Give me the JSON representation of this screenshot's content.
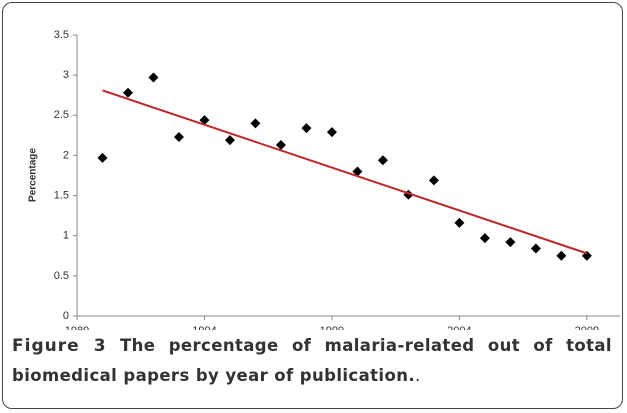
{
  "chart_data": {
    "type": "scatter",
    "y_label": "Percentage",
    "x": [
      1990,
      1991,
      1992,
      1993,
      1994,
      1995,
      1996,
      1997,
      1998,
      1999,
      2000,
      2001,
      2002,
      2003,
      2004,
      2005,
      2006,
      2007,
      2008,
      2009
    ],
    "values": [
      1.97,
      2.78,
      2.97,
      2.23,
      2.44,
      2.19,
      2.4,
      2.13,
      2.34,
      2.29,
      1.8,
      1.94,
      1.51,
      1.69,
      1.16,
      0.97,
      0.92,
      0.84,
      0.75,
      0.75
    ],
    "color": "#000000",
    "trendline": {
      "x": [
        1990,
        2009
      ],
      "values": [
        2.81,
        0.78
      ],
      "color": "#c0262b"
    },
    "xlim": [
      1989,
      2010.3
    ],
    "xticks": [
      1989,
      1994,
      1999,
      2004,
      2009
    ],
    "ylim": [
      0,
      3.5
    ],
    "yticks": [
      0,
      0.5,
      1,
      1.5,
      2,
      2.5,
      3,
      3.5
    ],
    "grid": false
  },
  "caption": {
    "label": "Figure 3",
    "text": "The percentage of malaria-related out of total biomedical papers by year of publication."
  }
}
